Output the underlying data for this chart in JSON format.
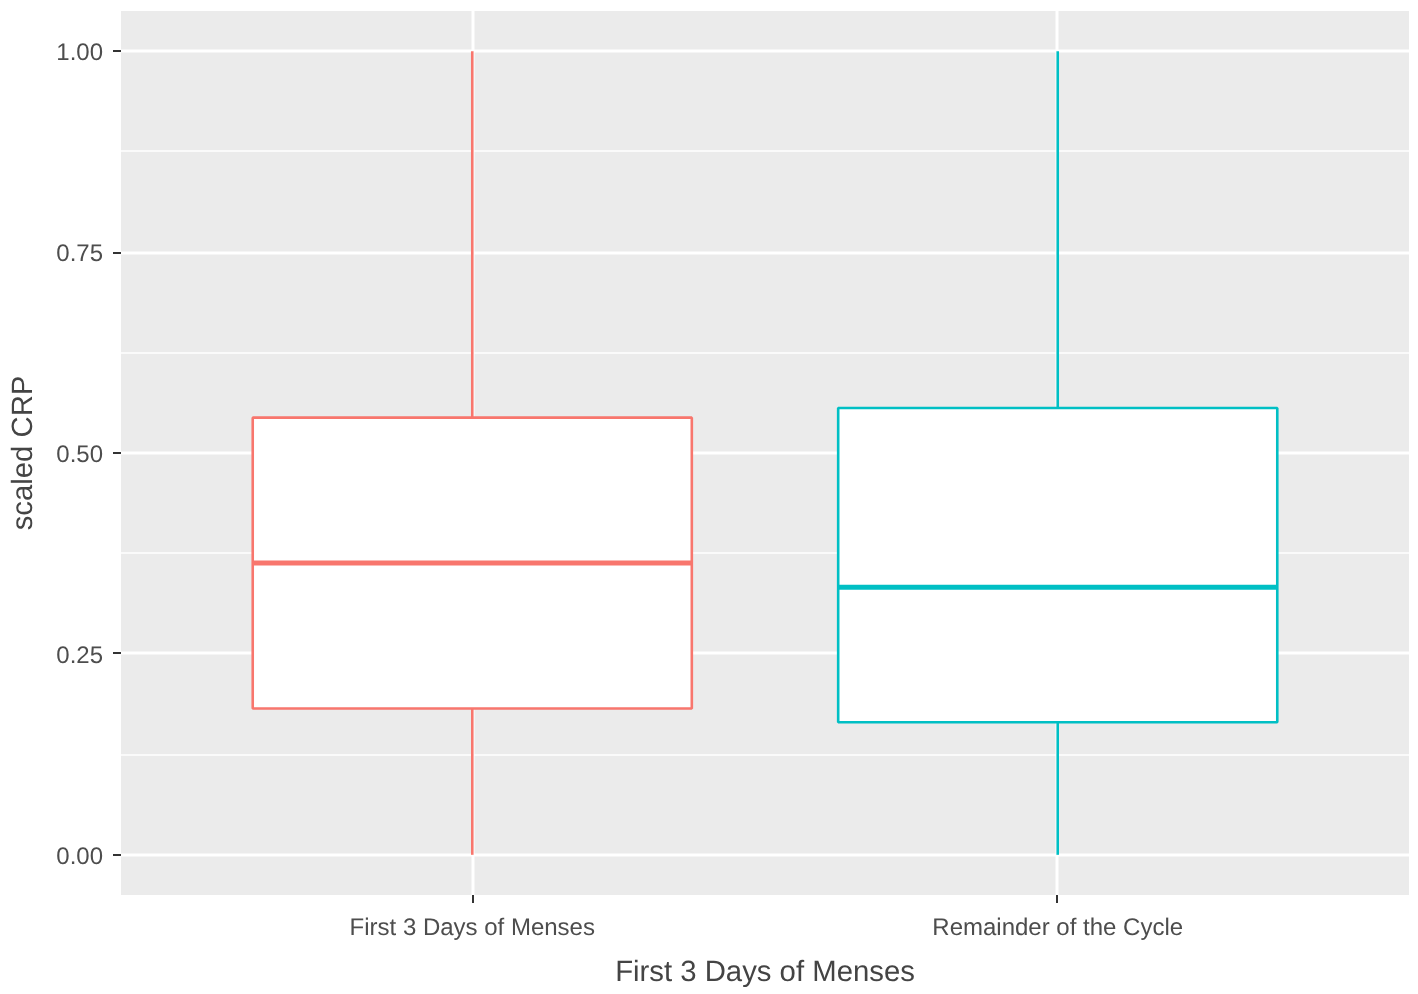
{
  "chart_data": {
    "type": "box",
    "xlabel": "First 3 Days of Menses",
    "ylabel": "scaled CRP",
    "categories": [
      "First 3 Days of Menses",
      "Remainder of the Cycle"
    ],
    "colors": [
      "#f8766d",
      "#00bfc4"
    ],
    "boxes": [
      {
        "low": 0.0,
        "q1": 0.182,
        "median": 0.363,
        "q3": 0.544,
        "high": 1.0
      },
      {
        "low": 0.0,
        "q1": 0.165,
        "median": 0.333,
        "q3": 0.556,
        "high": 1.0
      }
    ],
    "ylim": [
      -0.05,
      1.05
    ],
    "yticks": [
      {
        "value": 0,
        "label": "0.00"
      },
      {
        "value": 0.25,
        "label": "0.25"
      },
      {
        "value": 0.5,
        "label": "0.50"
      },
      {
        "value": 0.75,
        "label": "0.75"
      },
      {
        "value": 1,
        "label": "1.00"
      }
    ],
    "grid": true
  }
}
